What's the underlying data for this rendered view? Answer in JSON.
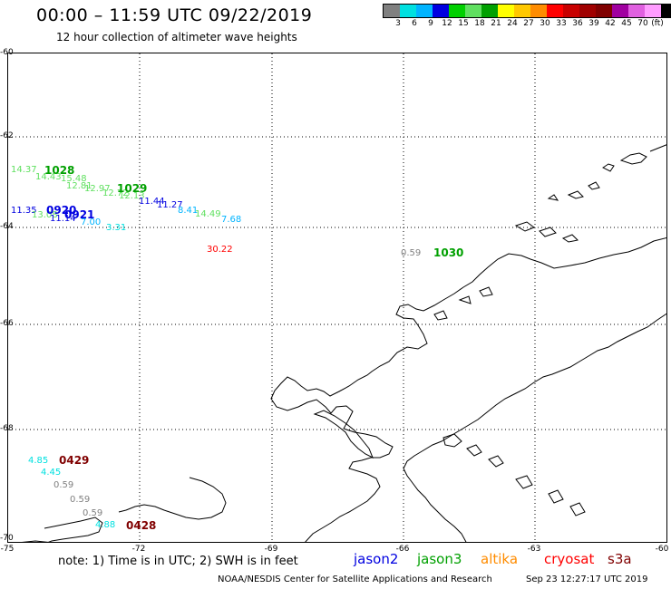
{
  "header": {
    "title": "00:00 – 11:59 UTC 09/22/2019",
    "subtitle": "12 hour collection of altimeter wave heights"
  },
  "legend": {
    "swatch_colors": [
      "#808080",
      "#00e0e0",
      "#00b4ff",
      "#0000e0",
      "#00d000",
      "#60e060",
      "#00a000",
      "#ffff00",
      "#ffc800",
      "#ff8c00",
      "#ff0000",
      "#c80000",
      "#a00000",
      "#800000",
      "#a000a0",
      "#e060e0",
      "#ff9cff",
      "#000000"
    ],
    "labels": [
      "3",
      "6",
      "9",
      "12",
      "15",
      "18",
      "21",
      "24",
      "27",
      "30",
      "33",
      "36",
      "39",
      "42",
      "45",
      "70",
      "(ft)"
    ]
  },
  "axes": {
    "lat_labels": [
      "-60",
      "-62",
      "-64",
      "-66",
      "-68",
      "-70"
    ],
    "lon_labels": [
      "-75",
      "-72",
      "-69",
      "-66",
      "-63",
      "-60"
    ]
  },
  "observations": [
    {
      "text": "14.37",
      "color": "#60e060"
    },
    {
      "text": "14.43",
      "color": "#60e060"
    },
    {
      "text": "15.48",
      "color": "#60e060"
    },
    {
      "text": "12.81",
      "color": "#60e060"
    },
    {
      "text": "12.97",
      "color": "#60e060"
    },
    {
      "text": "12.72",
      "color": "#60e060"
    },
    {
      "text": "12.13",
      "color": "#60e060"
    },
    {
      "text": "11.44",
      "color": "#0000e0"
    },
    {
      "text": "11.27",
      "color": "#0000e0"
    },
    {
      "text": "8.41",
      "color": "#00b4ff"
    },
    {
      "text": "14.49",
      "color": "#60e060"
    },
    {
      "text": "7.68",
      "color": "#00b4ff"
    },
    {
      "text": "11.35",
      "color": "#0000e0"
    },
    {
      "text": "13.08",
      "color": "#60e060"
    },
    {
      "text": "11.14",
      "color": "#0000e0"
    },
    {
      "text": "7.00",
      "color": "#00b4ff"
    },
    {
      "text": "3.31",
      "color": "#00e0e0"
    },
    {
      "text": "30.22",
      "color": "#ff0000"
    },
    {
      "text": "0.59",
      "color": "#808080"
    },
    {
      "text": "4.85",
      "color": "#00e0e0"
    },
    {
      "text": "4.45",
      "color": "#00e0e0"
    },
    {
      "text": "0.59",
      "color": "#808080"
    },
    {
      "text": "0.59",
      "color": "#808080"
    },
    {
      "text": "0.59",
      "color": "#808080"
    },
    {
      "text": "4.88",
      "color": "#00e0e0"
    }
  ],
  "pass_labels": [
    {
      "text": "1028",
      "color": "#00a000"
    },
    {
      "text": "1029",
      "color": "#00a000"
    },
    {
      "text": "0920",
      "color": "#0000e0"
    },
    {
      "text": "0921",
      "color": "#0000e0"
    },
    {
      "text": "1030",
      "color": "#00a000"
    },
    {
      "text": "0429",
      "color": "#800000"
    },
    {
      "text": "0428",
      "color": "#800000"
    }
  ],
  "footer": {
    "note": "note: 1) Time is in UTC; 2) SWH is in feet",
    "satellites": [
      {
        "name": "jason2",
        "color": "#0000e0"
      },
      {
        "name": "jason3",
        "color": "#00a000"
      },
      {
        "name": "altika",
        "color": "#ff8c00"
      },
      {
        "name": "cryosat",
        "color": "#ff0000"
      },
      {
        "name": "s3a",
        "color": "#800000"
      }
    ],
    "credit": "NOAA/NESDIS Center for Satellite Applications and Research",
    "timestamp": "Sep 23 12:27:17 UTC 2019"
  }
}
